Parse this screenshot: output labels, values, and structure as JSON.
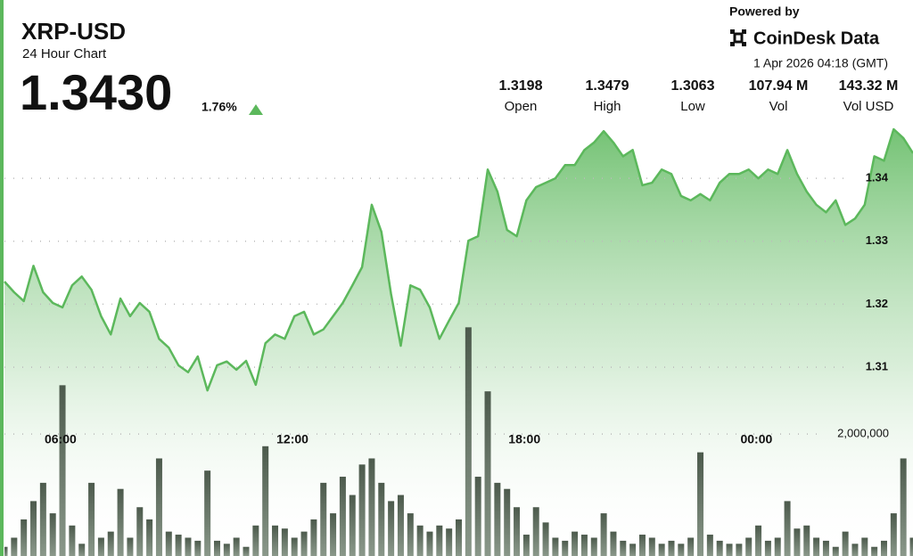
{
  "header": {
    "symbol": "XRP-USD",
    "subtitle": "24 Hour Chart",
    "price": "1.3430",
    "change": "1.76%",
    "stats": [
      {
        "value": "1.3198",
        "label": "Open"
      },
      {
        "value": "1.3479",
        "label": "High"
      },
      {
        "value": "1.3063",
        "label": "Low"
      },
      {
        "value": "107.94 M",
        "label": "Vol"
      },
      {
        "value": "143.32 M",
        "label": "Vol USD"
      }
    ],
    "powered_by": "Powered by",
    "brand": "CoinDesk Data",
    "timestamp": "1 Apr 2026 04:18 (GMT)"
  },
  "chart_data": {
    "type": "line",
    "x": [
      4.55,
      4.8,
      5.05,
      5.3,
      5.55,
      5.8,
      6.05,
      6.3,
      6.55,
      6.8,
      7.05,
      7.3,
      7.55,
      7.8,
      8.05,
      8.3,
      8.55,
      8.8,
      9.05,
      9.3,
      9.55,
      9.8,
      10.05,
      10.3,
      10.55,
      10.8,
      11.05,
      11.3,
      11.55,
      11.8,
      12.05,
      12.3,
      12.55,
      12.8,
      13.05,
      13.3,
      13.55,
      13.8,
      14.05,
      14.3,
      14.55,
      14.8,
      15.05,
      15.3,
      15.55,
      15.8,
      16.05,
      16.3,
      16.55,
      16.8,
      17.05,
      17.3,
      17.55,
      17.8,
      18.05,
      18.3,
      18.55,
      18.8,
      19.05,
      19.3,
      19.55,
      19.8,
      20.05,
      20.3,
      20.55,
      20.8,
      21.05,
      21.3,
      21.55,
      21.8,
      22.05,
      22.3,
      22.55,
      22.8,
      23.05,
      23.3,
      23.55,
      23.8,
      24.05,
      24.3,
      24.55,
      24.8,
      25.05,
      25.3,
      25.55,
      25.8,
      26.05,
      26.3,
      26.55,
      26.8,
      27.05,
      27.3,
      27.55,
      27.8,
      28.05
    ],
    "series": [
      {
        "color": "#5cb85c",
        "values": [
          1.3236,
          1.3219,
          1.3205,
          1.3261,
          1.3219,
          1.3202,
          1.3195,
          1.323,
          1.3244,
          1.3223,
          1.3181,
          1.3152,
          1.3209,
          1.3181,
          1.3202,
          1.3188,
          1.3145,
          1.3131,
          1.3103,
          1.3092,
          1.3117,
          1.3063,
          1.3103,
          1.3109,
          1.3096,
          1.311,
          1.3072,
          1.3138,
          1.3152,
          1.3145,
          1.3181,
          1.3188,
          1.3152,
          1.316,
          1.3181,
          1.3202,
          1.323,
          1.3259,
          1.3358,
          1.3315,
          1.3216,
          1.3134,
          1.323,
          1.3223,
          1.3195,
          1.3145,
          1.3174,
          1.3202,
          1.3301,
          1.3308,
          1.3414,
          1.3379,
          1.3318,
          1.3308,
          1.3365,
          1.3386,
          1.3393,
          1.34,
          1.3421,
          1.3421,
          1.3445,
          1.3457,
          1.3475,
          1.3457,
          1.3435,
          1.3445,
          1.3389,
          1.3393,
          1.3414,
          1.3407,
          1.3372,
          1.3365,
          1.3375,
          1.3365,
          1.3393,
          1.3407,
          1.3407,
          1.3414,
          1.34,
          1.3414,
          1.3407,
          1.3445,
          1.3407,
          1.3379,
          1.3358,
          1.3346,
          1.3365,
          1.3326,
          1.3336,
          1.3358,
          1.3435,
          1.3428,
          1.3478,
          1.3464,
          1.344
        ]
      },
      {
        "type": "bar",
        "axis": "y2",
        "color": "#5f6d5f",
        "values": [
          150000,
          300000,
          600000,
          900000,
          1200000,
          700000,
          2800000,
          500000,
          200000,
          1200000,
          300000,
          400000,
          1100000,
          300000,
          800000,
          600000,
          1600000,
          400000,
          350000,
          300000,
          250000,
          1400000,
          250000,
          200000,
          300000,
          150000,
          500000,
          1800000,
          500000,
          450000,
          300000,
          400000,
          600000,
          1200000,
          700000,
          1300000,
          1000000,
          1500000,
          1600000,
          1200000,
          900000,
          1000000,
          700000,
          500000,
          400000,
          500000,
          450000,
          600000,
          3750000,
          1300000,
          2700000,
          1200000,
          1100000,
          800000,
          350000,
          800000,
          550000,
          300000,
          250000,
          400000,
          350000,
          300000,
          700000,
          400000,
          250000,
          200000,
          350000,
          300000,
          200000,
          250000,
          200000,
          300000,
          1700000,
          350000,
          250000,
          200000,
          200000,
          300000,
          500000,
          250000,
          300000,
          900000,
          450000,
          500000,
          300000,
          250000,
          150000,
          400000,
          200000,
          300000,
          150000,
          250000,
          700000,
          1600000,
          300000
        ]
      }
    ],
    "xlim": [
      4.55,
      28.05
    ],
    "xticks": [
      {
        "value": 6,
        "label": "06:00"
      },
      {
        "value": 12,
        "label": "12:00"
      },
      {
        "value": 18,
        "label": "18:00"
      },
      {
        "value": 24,
        "label": "00:00"
      }
    ],
    "ylim": [
      1.28,
      1.3672
    ],
    "yticks": [
      1.31,
      1.32,
      1.33,
      1.34
    ],
    "y2lim": [
      0,
      9000000
    ],
    "y2ticks": [
      {
        "value": 2000000,
        "label": "2,000,000"
      }
    ],
    "grid": true
  }
}
